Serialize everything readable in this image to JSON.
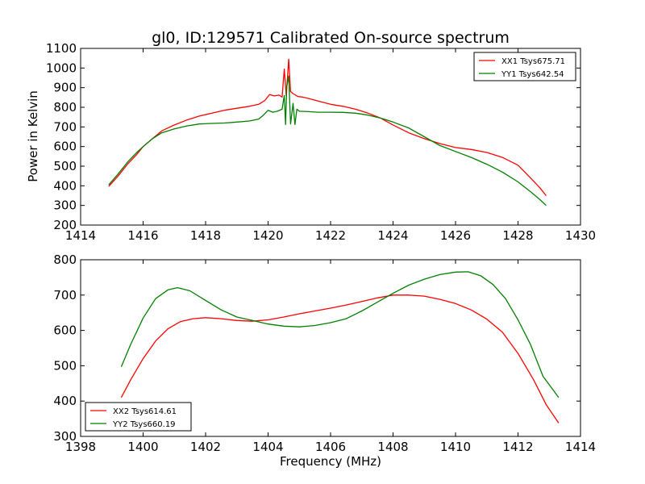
{
  "figure": {
    "title": "gl0, ID:129571 Calibrated On-source spectrum",
    "xlabel": "Frequency (MHz)"
  },
  "chart_data": [
    {
      "type": "line",
      "title": "gl0, ID:129571 Calibrated On-source spectrum",
      "xlabel": "",
      "ylabel": "Power in Kelvin",
      "xlim": [
        1414,
        1430
      ],
      "ylim": [
        200,
        1100
      ],
      "xticks": [
        1414,
        1416,
        1418,
        1420,
        1422,
        1424,
        1426,
        1428,
        1430
      ],
      "yticks": [
        200,
        300,
        400,
        500,
        600,
        700,
        800,
        900,
        1000,
        1100
      ],
      "grid": false,
      "legend": "top-right",
      "series": [
        {
          "name": "XX1 Tsys675.71",
          "color": "#ff0000",
          "points": [
            [
              1414.9,
              397
            ],
            [
              1415.2,
              450
            ],
            [
              1415.5,
              510
            ],
            [
              1415.8,
              560
            ],
            [
              1416.0,
              600
            ],
            [
              1416.3,
              640
            ],
            [
              1416.6,
              680
            ],
            [
              1417.0,
              710
            ],
            [
              1417.4,
              735
            ],
            [
              1417.8,
              755
            ],
            [
              1418.2,
              770
            ],
            [
              1418.6,
              785
            ],
            [
              1419.0,
              795
            ],
            [
              1419.4,
              805
            ],
            [
              1419.7,
              815
            ],
            [
              1419.9,
              835
            ],
            [
              1420.05,
              865
            ],
            [
              1420.2,
              858
            ],
            [
              1420.35,
              862
            ],
            [
              1420.45,
              852
            ],
            [
              1420.52,
              995
            ],
            [
              1420.58,
              860
            ],
            [
              1420.66,
              1045
            ],
            [
              1420.72,
              880
            ],
            [
              1420.8,
              870
            ],
            [
              1420.95,
              855
            ],
            [
              1421.1,
              852
            ],
            [
              1421.3,
              845
            ],
            [
              1421.6,
              832
            ],
            [
              1422.0,
              815
            ],
            [
              1422.4,
              805
            ],
            [
              1422.8,
              790
            ],
            [
              1423.2,
              770
            ],
            [
              1423.6,
              745
            ],
            [
              1424.0,
              710
            ],
            [
              1424.5,
              670
            ],
            [
              1425.0,
              640
            ],
            [
              1425.5,
              615
            ],
            [
              1426.0,
              595
            ],
            [
              1426.5,
              585
            ],
            [
              1427.0,
              570
            ],
            [
              1427.5,
              545
            ],
            [
              1428.0,
              505
            ],
            [
              1428.4,
              440
            ],
            [
              1428.7,
              390
            ],
            [
              1428.9,
              350
            ]
          ]
        },
        {
          "name": "YY1 Tsys642.54",
          "color": "#008000",
          "points": [
            [
              1414.9,
              405
            ],
            [
              1415.2,
              460
            ],
            [
              1415.5,
              520
            ],
            [
              1415.8,
              570
            ],
            [
              1416.0,
              600
            ],
            [
              1416.3,
              640
            ],
            [
              1416.6,
              670
            ],
            [
              1417.0,
              690
            ],
            [
              1417.4,
              705
            ],
            [
              1417.8,
              715
            ],
            [
              1418.2,
              718
            ],
            [
              1418.6,
              720
            ],
            [
              1419.0,
              725
            ],
            [
              1419.4,
              730
            ],
            [
              1419.7,
              740
            ],
            [
              1419.85,
              760
            ],
            [
              1420.0,
              785
            ],
            [
              1420.15,
              775
            ],
            [
              1420.3,
              780
            ],
            [
              1420.45,
              790
            ],
            [
              1420.52,
              860
            ],
            [
              1420.56,
              712
            ],
            [
              1420.6,
              905
            ],
            [
              1420.66,
              960
            ],
            [
              1420.72,
              715
            ],
            [
              1420.8,
              820
            ],
            [
              1420.86,
              712
            ],
            [
              1420.92,
              790
            ],
            [
              1421.0,
              780
            ],
            [
              1421.3,
              778
            ],
            [
              1421.6,
              775
            ],
            [
              1422.0,
              775
            ],
            [
              1422.4,
              774
            ],
            [
              1422.8,
              770
            ],
            [
              1423.2,
              760
            ],
            [
              1423.6,
              745
            ],
            [
              1424.0,
              725
            ],
            [
              1424.5,
              695
            ],
            [
              1425.0,
              650
            ],
            [
              1425.5,
              605
            ],
            [
              1426.0,
              575
            ],
            [
              1426.5,
              545
            ],
            [
              1427.0,
              510
            ],
            [
              1427.5,
              470
            ],
            [
              1428.0,
              420
            ],
            [
              1428.4,
              370
            ],
            [
              1428.7,
              330
            ],
            [
              1428.9,
              300
            ]
          ]
        }
      ]
    },
    {
      "type": "line",
      "title": "",
      "xlabel": "Frequency (MHz)",
      "ylabel": "",
      "xlim": [
        1398,
        1414
      ],
      "ylim": [
        300,
        800
      ],
      "xticks": [
        1398,
        1400,
        1402,
        1404,
        1406,
        1408,
        1410,
        1412,
        1414
      ],
      "yticks": [
        300,
        400,
        500,
        600,
        700,
        800
      ],
      "grid": false,
      "legend": "bottom-left",
      "series": [
        {
          "name": "XX2 Tsys614.61",
          "color": "#ff0000",
          "points": [
            [
              1399.3,
              410
            ],
            [
              1399.6,
              460
            ],
            [
              1400.0,
              520
            ],
            [
              1400.4,
              570
            ],
            [
              1400.8,
              605
            ],
            [
              1401.2,
              625
            ],
            [
              1401.6,
              633
            ],
            [
              1402.0,
              636
            ],
            [
              1402.5,
              633
            ],
            [
              1403.0,
              628
            ],
            [
              1403.5,
              626
            ],
            [
              1404.0,
              630
            ],
            [
              1404.5,
              638
            ],
            [
              1405.0,
              647
            ],
            [
              1405.5,
              655
            ],
            [
              1406.0,
              663
            ],
            [
              1406.5,
              672
            ],
            [
              1407.0,
              682
            ],
            [
              1407.5,
              692
            ],
            [
              1408.0,
              700
            ],
            [
              1408.5,
              700
            ],
            [
              1409.0,
              697
            ],
            [
              1409.5,
              688
            ],
            [
              1410.0,
              676
            ],
            [
              1410.5,
              658
            ],
            [
              1411.0,
              632
            ],
            [
              1411.5,
              595
            ],
            [
              1412.0,
              535
            ],
            [
              1412.5,
              460
            ],
            [
              1412.9,
              390
            ],
            [
              1413.3,
              338
            ]
          ]
        },
        {
          "name": "YY2 Tsys660.19",
          "color": "#008000",
          "points": [
            [
              1399.3,
              497
            ],
            [
              1399.6,
              560
            ],
            [
              1400.0,
              635
            ],
            [
              1400.4,
              690
            ],
            [
              1400.8,
              715
            ],
            [
              1401.1,
              721
            ],
            [
              1401.5,
              712
            ],
            [
              1402.0,
              685
            ],
            [
              1402.5,
              658
            ],
            [
              1403.0,
              638
            ],
            [
              1403.5,
              628
            ],
            [
              1404.0,
              618
            ],
            [
              1404.5,
              612
            ],
            [
              1405.0,
              610
            ],
            [
              1405.5,
              614
            ],
            [
              1406.0,
              622
            ],
            [
              1406.5,
              633
            ],
            [
              1407.0,
              655
            ],
            [
              1407.5,
              680
            ],
            [
              1408.0,
              705
            ],
            [
              1408.5,
              728
            ],
            [
              1409.0,
              745
            ],
            [
              1409.5,
              758
            ],
            [
              1410.0,
              765
            ],
            [
              1410.4,
              766
            ],
            [
              1410.8,
              755
            ],
            [
              1411.2,
              730
            ],
            [
              1411.6,
              690
            ],
            [
              1412.0,
              630
            ],
            [
              1412.4,
              560
            ],
            [
              1412.8,
              470
            ],
            [
              1413.3,
              410
            ]
          ]
        }
      ]
    }
  ]
}
